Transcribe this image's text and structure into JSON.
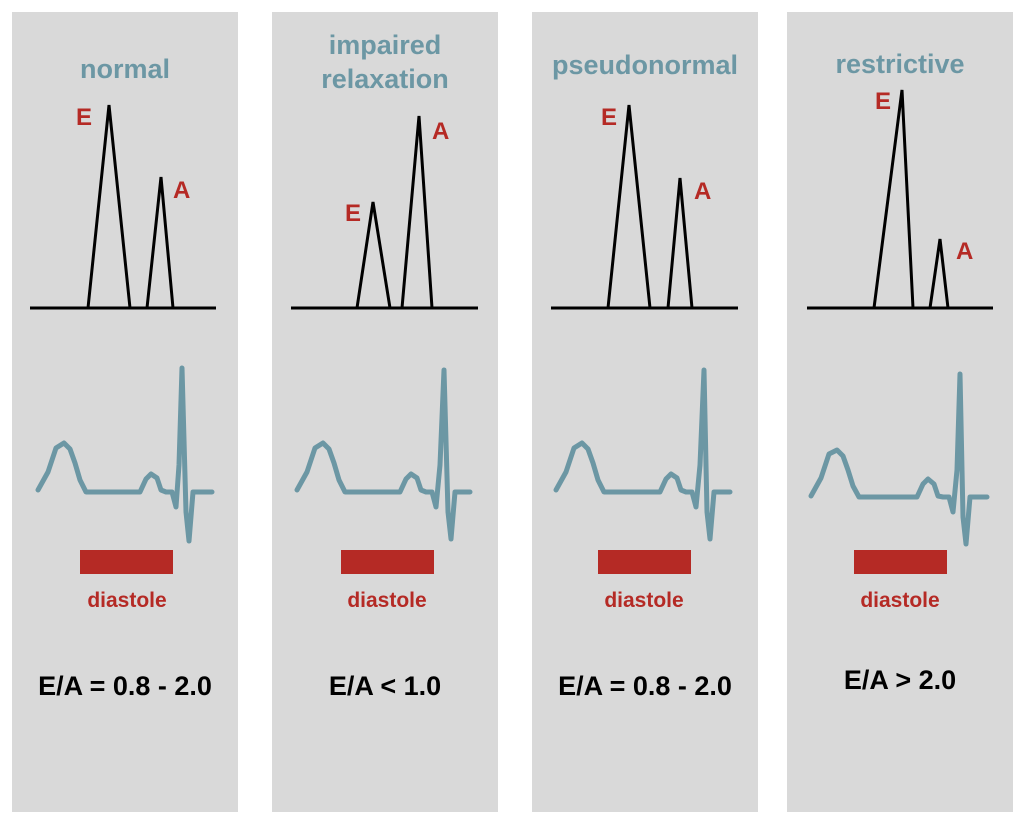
{
  "colors": {
    "panel_background": "#d9d9d9",
    "title": "#6c97a4",
    "peak_label": "#b52a25",
    "ecg_trace": "#6c97a4",
    "diastole_bar": "#b52a25",
    "doppler_trace": "#000000"
  },
  "panels": [
    {
      "title": "normal",
      "peaks": {
        "e_label": "E",
        "a_label": "A",
        "e_height": 1.0,
        "a_height": 0.66
      },
      "diastole_label": "diastole",
      "ratio": "E/A = 0.8 - 2.0"
    },
    {
      "title": "impaired\nrelaxation",
      "peaks": {
        "e_label": "E",
        "a_label": "A",
        "e_height": 0.52,
        "a_height": 0.93
      },
      "diastole_label": "diastole",
      "ratio": "E/A < 1.0"
    },
    {
      "title": "pseudonormal",
      "peaks": {
        "e_label": "E",
        "a_label": "A",
        "e_height": 1.0,
        "a_height": 0.64
      },
      "diastole_label": "diastole",
      "ratio": "E/A = 0.8 - 2.0"
    },
    {
      "title": "restrictive",
      "peaks": {
        "e_label": "E",
        "a_label": "A",
        "e_height": 1.0,
        "a_height": 0.31
      },
      "diastole_label": "diastole",
      "ratio": "E/A > 2.0"
    }
  ]
}
